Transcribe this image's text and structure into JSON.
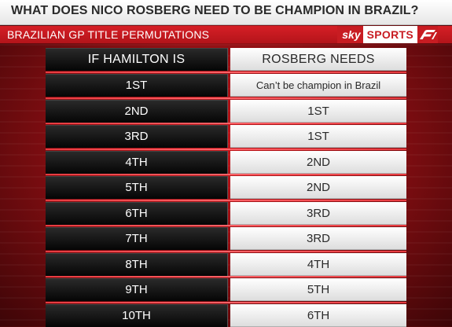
{
  "title": "WHAT DOES NICO ROSBERG NEED TO BE CHAMPION IN BRAZIL?",
  "subtitle": "BRAZILIAN GP TITLE PERMUTATIONS",
  "logo": {
    "sky": "sky",
    "sports": "SPORTS",
    "brand_color": "#c81c22"
  },
  "table": {
    "headers": [
      "IF HAMILTON IS",
      "ROSBERG NEEDS"
    ],
    "rows": [
      {
        "hamilton": "1ST",
        "rosberg": "Can’t be champion in Brazil"
      },
      {
        "hamilton": "2ND",
        "rosberg": "1ST"
      },
      {
        "hamilton": "3RD",
        "rosberg": "1ST"
      },
      {
        "hamilton": "4TH",
        "rosberg": "2ND"
      },
      {
        "hamilton": "5TH",
        "rosberg": "2ND"
      },
      {
        "hamilton": "6TH",
        "rosberg": "3RD"
      },
      {
        "hamilton": "7TH",
        "rosberg": "3RD"
      },
      {
        "hamilton": "8TH",
        "rosberg": "4TH"
      },
      {
        "hamilton": "9TH",
        "rosberg": "5TH"
      },
      {
        "hamilton": "10TH",
        "rosberg": "6TH"
      }
    ]
  }
}
